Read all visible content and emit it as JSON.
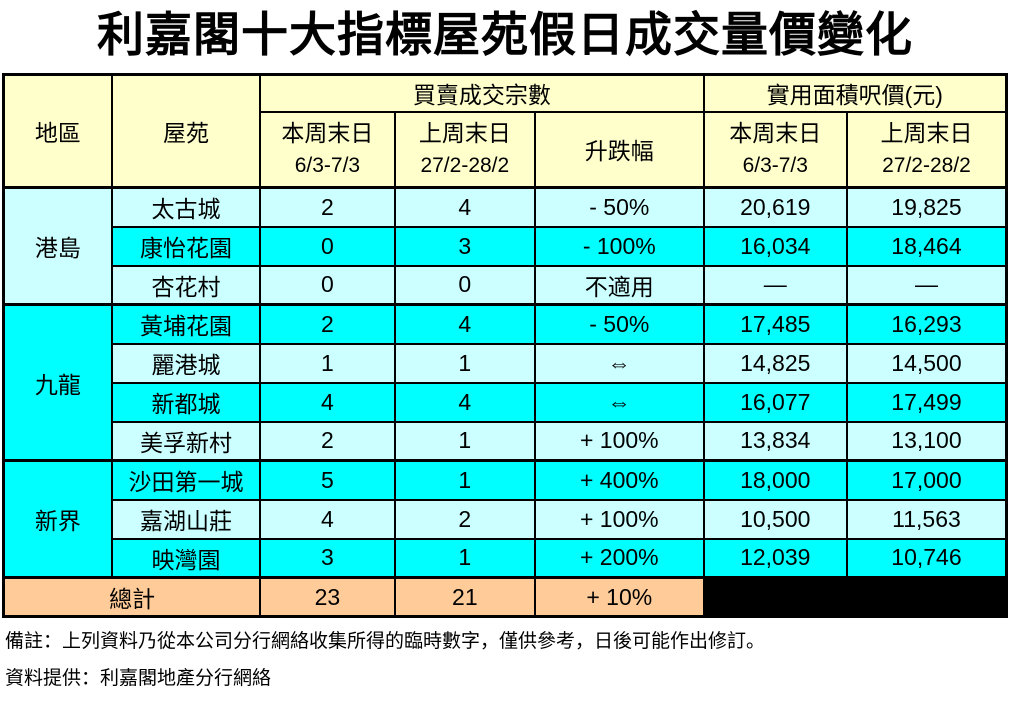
{
  "title": "利嘉閣十大指標屋苑假日成交量價變化",
  "table": {
    "headers": {
      "region": "地區",
      "estate": "屋苑",
      "transactions_group": "買賣成交宗數",
      "price_group": "實用面積呎價(元)",
      "this_week_label": "本周末日",
      "this_week_dates": "6/3-7/3",
      "last_week_label": "上周末日",
      "last_week_dates": "27/2-28/2",
      "change": "升跌幅"
    },
    "regions": [
      {
        "name": "港島",
        "rows": 3
      },
      {
        "name": "九龍",
        "rows": 4
      },
      {
        "name": "新界",
        "rows": 3
      }
    ],
    "rows": [
      {
        "estate": "太古城",
        "tx_this": "2",
        "tx_last": "4",
        "change": "- 50%",
        "price_this": "20,619",
        "price_last": "19,825"
      },
      {
        "estate": "康怡花園",
        "tx_this": "0",
        "tx_last": "3",
        "change": "- 100%",
        "price_this": "16,034",
        "price_last": "18,464"
      },
      {
        "estate": "杏花村",
        "tx_this": "0",
        "tx_last": "0",
        "change": "不適用",
        "price_this": "—",
        "price_last": "—"
      },
      {
        "estate": "黃埔花園",
        "tx_this": "2",
        "tx_last": "4",
        "change": "- 50%",
        "price_this": "17,485",
        "price_last": "16,293"
      },
      {
        "estate": "麗港城",
        "tx_this": "1",
        "tx_last": "1",
        "change": "⇔",
        "price_this": "14,825",
        "price_last": "14,500"
      },
      {
        "estate": "新都城",
        "tx_this": "4",
        "tx_last": "4",
        "change": "⇔",
        "price_this": "16,077",
        "price_last": "17,499"
      },
      {
        "estate": "美孚新村",
        "tx_this": "2",
        "tx_last": "1",
        "change": "+ 100%",
        "price_this": "13,834",
        "price_last": "13,100"
      },
      {
        "estate": "沙田第一城",
        "tx_this": "5",
        "tx_last": "1",
        "change": "+ 400%",
        "price_this": "18,000",
        "price_last": "17,000"
      },
      {
        "estate": "嘉湖山莊",
        "tx_this": "4",
        "tx_last": "2",
        "change": "+ 100%",
        "price_this": "10,500",
        "price_last": "11,563"
      },
      {
        "estate": "映灣園",
        "tx_this": "3",
        "tx_last": "1",
        "change": "+ 200%",
        "price_this": "12,039",
        "price_last": "10,746"
      }
    ],
    "total": {
      "label": "總計",
      "tx_this": "23",
      "tx_last": "21",
      "change": "+ 10%"
    }
  },
  "footer": {
    "note": "備註：上列資料乃從本公司分行網絡收集所得的臨時數字，僅供參考，日後可能作出修訂。",
    "source": "資料提供：利嘉閣地產分行網絡"
  },
  "colors": {
    "header_bg": "#FFFFCC",
    "region_bg": "#FFCCFF",
    "row_light": "#CCFFFF",
    "row_bright": "#00FFFF",
    "total_bg": "#FFCC99",
    "blank_bg": "#000000",
    "border": "#000000"
  }
}
